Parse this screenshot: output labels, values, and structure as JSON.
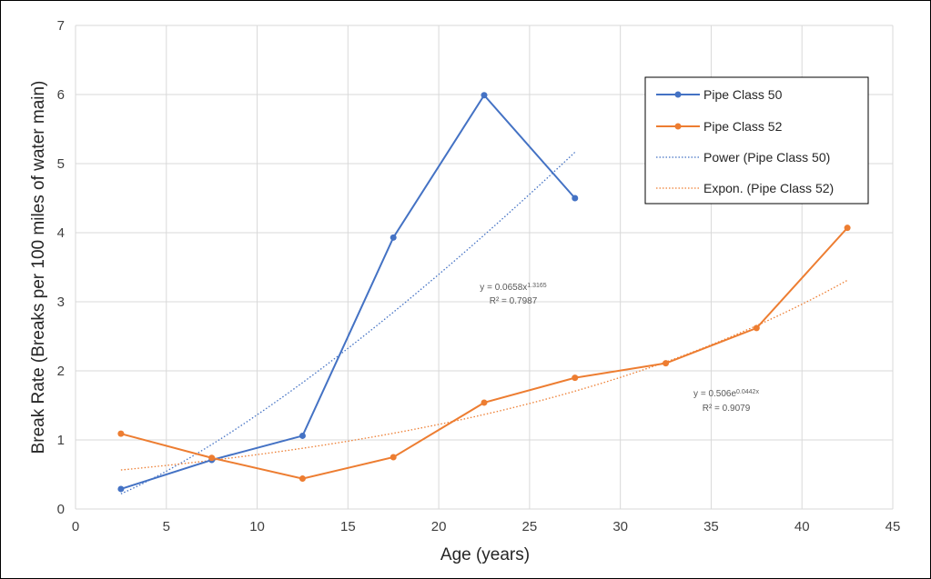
{
  "chart_data": {
    "type": "line",
    "title": "",
    "xlabel": "Age (years)",
    "ylabel": "Break Rate (Breaks per 100 miles of water main)",
    "xlim": [
      0,
      45
    ],
    "ylim": [
      0,
      7
    ],
    "xticks": [
      0,
      5,
      10,
      15,
      20,
      25,
      30,
      35,
      40,
      45
    ],
    "yticks": [
      0,
      1,
      2,
      3,
      4,
      5,
      6,
      7
    ],
    "grid": true,
    "legend_position": "top-right",
    "series": [
      {
        "name": "Pipe Class 50",
        "color": "#4472C4",
        "x": [
          2.5,
          7.5,
          12.5,
          17.5,
          22.5,
          27.5
        ],
        "y": [
          0.29,
          0.71,
          1.06,
          3.93,
          5.99,
          4.5
        ]
      },
      {
        "name": "Pipe Class 52",
        "color": "#ED7D31",
        "x": [
          2.5,
          7.5,
          12.5,
          17.5,
          22.5,
          27.5,
          32.5,
          37.5,
          42.5
        ],
        "y": [
          1.09,
          0.74,
          0.44,
          0.75,
          1.54,
          1.9,
          2.11,
          2.62,
          4.07
        ]
      }
    ],
    "trendlines": [
      {
        "name": "Power (Pipe Class 50)",
        "type": "power",
        "series": "Pipe Class 50",
        "a": 0.0658,
        "b": 1.3165,
        "color": "#4472C4",
        "x_range": [
          2.5,
          27.5
        ],
        "equation": {
          "prefix": "y = 0.0658x",
          "exponent": "1.3165",
          "r2": "R² = 0.7987"
        }
      },
      {
        "name": "Expon. (Pipe Class 52)",
        "type": "exponential",
        "series": "Pipe Class 52",
        "a": 0.506,
        "b": 0.0442,
        "color": "#ED7D31",
        "x_range": [
          2.5,
          42.5
        ],
        "equation": {
          "prefix": "y = 0.506e",
          "exponent": "0.0442x",
          "r2": "R² = 0.9079"
        }
      }
    ]
  }
}
